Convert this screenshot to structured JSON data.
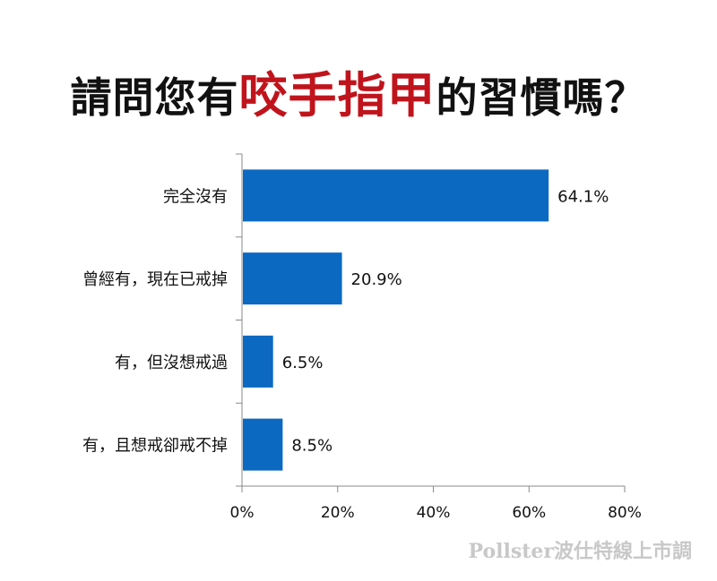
{
  "title": {
    "prefix": "請問您有",
    "highlight": "咬手指甲",
    "suffix": "的習慣嗎？"
  },
  "watermark": "Pollster波仕特線上市調",
  "colors": {
    "bar": "#0b69c2",
    "title_highlight": "#c0141c",
    "text": "#111111"
  },
  "chart_data": {
    "type": "bar",
    "orientation": "horizontal",
    "categories": [
      "完全沒有",
      "曾經有，現在已戒掉",
      "有，但沒想戒過",
      "有，且想戒卻戒不掉"
    ],
    "values": [
      64.1,
      20.9,
      6.5,
      8.5
    ],
    "value_labels": [
      "64.1%",
      "20.9%",
      "6.5%",
      "8.5%"
    ],
    "xlim": [
      0,
      80
    ],
    "xticks": [
      0,
      20,
      40,
      60,
      80
    ],
    "xtick_labels": [
      "0%",
      "20%",
      "40%",
      "60%",
      "80%"
    ],
    "grid": false,
    "legend": "none"
  }
}
